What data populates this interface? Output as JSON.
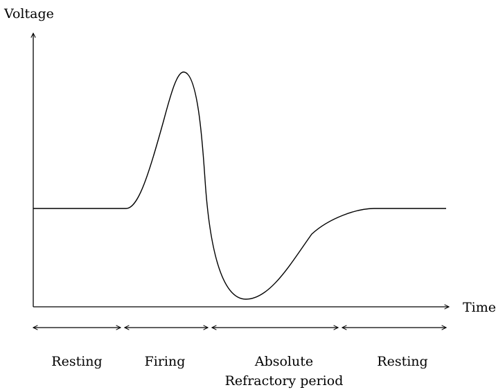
{
  "axes": {
    "y_label": "Voltage",
    "x_label": "Time"
  },
  "phases": [
    {
      "id": "resting-1",
      "line1": "Resting",
      "line2": ""
    },
    {
      "id": "firing",
      "line1": "Firing",
      "line2": ""
    },
    {
      "id": "absolute",
      "line1": "Absolute",
      "line2": "Refractory period"
    },
    {
      "id": "resting-2",
      "line1": "Resting",
      "line2": ""
    }
  ]
}
